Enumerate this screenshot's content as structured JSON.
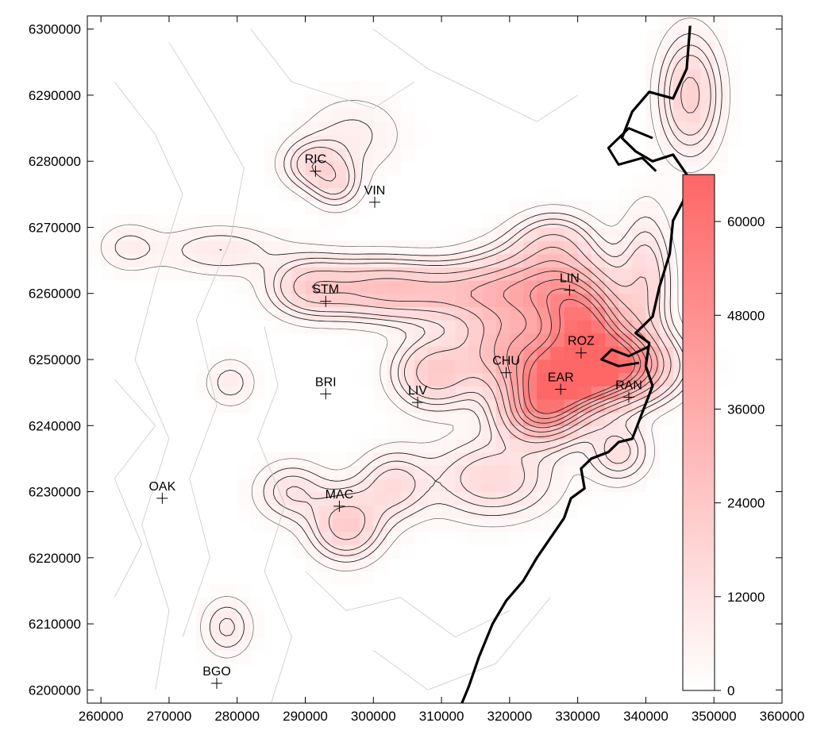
{
  "chart_data": {
    "type": "heatmap",
    "title": "",
    "xlabel": "",
    "ylabel": "",
    "x_range": [
      258000,
      360000
    ],
    "y_range": [
      6198000,
      6302000
    ],
    "x_ticks": [
      "260000",
      "270000",
      "280000",
      "290000",
      "300000",
      "310000",
      "320000",
      "330000",
      "340000",
      "350000",
      "360000"
    ],
    "y_ticks": [
      "6200000",
      "6210000",
      "6220000",
      "6230000",
      "6240000",
      "6250000",
      "6260000",
      "6270000",
      "6280000",
      "6290000",
      "6300000"
    ],
    "colorbar": {
      "min": 0,
      "max": 66000,
      "ticks": [
        "0",
        "12000",
        "24000",
        "36000",
        "48000",
        "60000"
      ],
      "color_low": "#ffffff",
      "color_high": "#ff6666"
    },
    "coastline_color": "#000000",
    "stations": [
      {
        "code": "RIC",
        "x": 291500,
        "y": 6278500
      },
      {
        "code": "VIN",
        "x": 300200,
        "y": 6273800
      },
      {
        "code": "STM",
        "x": 293000,
        "y": 6258800
      },
      {
        "code": "LIN",
        "x": 328800,
        "y": 6260500
      },
      {
        "code": "ROZ",
        "x": 330500,
        "y": 6251000
      },
      {
        "code": "CHU",
        "x": 319500,
        "y": 6248000
      },
      {
        "code": "EAR",
        "x": 327500,
        "y": 6245500
      },
      {
        "code": "RAN",
        "x": 337500,
        "y": 6244300
      },
      {
        "code": "BRI",
        "x": 293000,
        "y": 6244800
      },
      {
        "code": "LIV",
        "x": 306500,
        "y": 6243500
      },
      {
        "code": "OAK",
        "x": 269000,
        "y": 6229000
      },
      {
        "code": "MAC",
        "x": 295000,
        "y": 6227800
      },
      {
        "code": "BGO",
        "x": 277000,
        "y": 6201000
      }
    ],
    "hotspots": [
      {
        "x": 334000,
        "y": 6249000,
        "value": 62000,
        "sx": 6000,
        "sy": 3500
      },
      {
        "x": 327000,
        "y": 6246000,
        "value": 42000,
        "sx": 5000,
        "sy": 3500
      },
      {
        "x": 324500,
        "y": 6241500,
        "value": 32000,
        "sx": 4000,
        "sy": 3000
      },
      {
        "x": 332000,
        "y": 6255000,
        "value": 30000,
        "sx": 4000,
        "sy": 3500
      },
      {
        "x": 320000,
        "y": 6252000,
        "value": 27000,
        "sx": 5000,
        "sy": 4000
      },
      {
        "x": 309000,
        "y": 6248000,
        "value": 22000,
        "sx": 4000,
        "sy": 3500
      },
      {
        "x": 324500,
        "y": 6261500,
        "value": 24000,
        "sx": 7000,
        "sy": 4000
      },
      {
        "x": 312000,
        "y": 6260000,
        "value": 20000,
        "sx": 9000,
        "sy": 3000
      },
      {
        "x": 300000,
        "y": 6261000,
        "value": 18000,
        "sx": 6000,
        "sy": 3000
      },
      {
        "x": 290500,
        "y": 6261000,
        "value": 17000,
        "sx": 4000,
        "sy": 3000
      },
      {
        "x": 329000,
        "y": 6258000,
        "value": 22000,
        "sx": 4000,
        "sy": 4000
      },
      {
        "x": 340000,
        "y": 6262000,
        "value": 15000,
        "sx": 2500,
        "sy": 7000
      },
      {
        "x": 326500,
        "y": 6268000,
        "value": 14000,
        "sx": 4000,
        "sy": 3000
      },
      {
        "x": 296000,
        "y": 6225000,
        "value": 22000,
        "sx": 3500,
        "sy": 3500
      },
      {
        "x": 303000,
        "y": 6231000,
        "value": 14000,
        "sx": 3500,
        "sy": 3500
      },
      {
        "x": 288000,
        "y": 6230000,
        "value": 12000,
        "sx": 3500,
        "sy": 3000
      },
      {
        "x": 317500,
        "y": 6232000,
        "value": 16000,
        "sx": 6000,
        "sy": 4000
      },
      {
        "x": 346500,
        "y": 6290000,
        "value": 20000,
        "sx": 3000,
        "sy": 6000
      },
      {
        "x": 291000,
        "y": 6279500,
        "value": 14000,
        "sx": 3000,
        "sy": 2500
      },
      {
        "x": 294500,
        "y": 6276500,
        "value": 12000,
        "sx": 2500,
        "sy": 2500
      },
      {
        "x": 297000,
        "y": 6284000,
        "value": 7000,
        "sx": 5000,
        "sy": 4000
      },
      {
        "x": 277500,
        "y": 6266500,
        "value": 9000,
        "sx": 6000,
        "sy": 2500
      },
      {
        "x": 264000,
        "y": 6267000,
        "value": 7000,
        "sx": 3000,
        "sy": 2500
      },
      {
        "x": 278500,
        "y": 6209500,
        "value": 10000,
        "sx": 2500,
        "sy": 3000
      },
      {
        "x": 279000,
        "y": 6246500,
        "value": 8000,
        "sx": 2500,
        "sy": 2500
      },
      {
        "x": 336000,
        "y": 6236000,
        "value": 14000,
        "sx": 3000,
        "sy": 3000
      }
    ]
  }
}
